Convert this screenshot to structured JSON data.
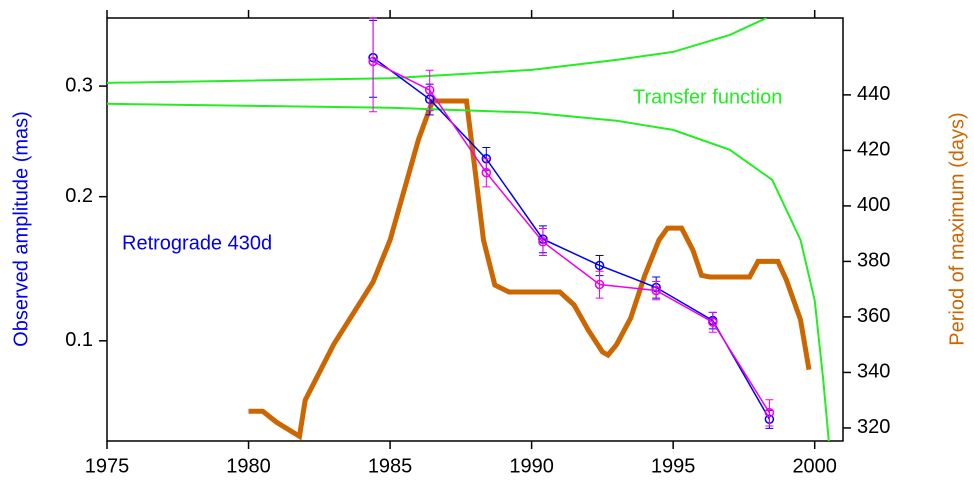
{
  "chart_data": {
    "type": "line",
    "xlim": [
      1975,
      2001
    ],
    "xticks": [
      1975,
      1980,
      1985,
      1990,
      1995,
      2000
    ],
    "ylim": [
      0.0507,
      0.3716
    ],
    "yscale": "sqrt",
    "yticks": [
      0.1,
      0.2,
      0.3
    ],
    "y2lim": [
      315.3,
      467.7
    ],
    "y2ticks": [
      320,
      340,
      360,
      380,
      400,
      420,
      440
    ],
    "ylabel": "Observed amplitude (mas)",
    "y2label": "Period of maximum (days)",
    "series": [
      {
        "name": "Retrograde 430d",
        "color": "#0000ee",
        "marker": "circle",
        "x": [
          1984.4,
          1986.4,
          1988.4,
          1990.4,
          1992.4,
          1994.4,
          1996.4,
          1998.4
        ],
        "values": [
          0.329,
          0.287,
          0.232,
          0.167,
          0.148,
          0.133,
          0.112,
          0.06
        ],
        "errors": [
          0.04,
          0.015,
          0.01,
          0.01,
          0.007,
          0.007,
          0.005,
          0.004
        ]
      },
      {
        "color": "#ee00ee",
        "marker": "circle",
        "x": [
          1984.4,
          1986.4,
          1988.4,
          1990.4,
          1992.4,
          1994.4,
          1996.4,
          1998.4
        ],
        "values": [
          0.325,
          0.296,
          0.22,
          0.165,
          0.135,
          0.131,
          0.111,
          0.063
        ],
        "errors": [
          0.05,
          0.02,
          0.012,
          0.01,
          0.009,
          0.006,
          0.006,
          0.006
        ]
      },
      {
        "name": "Transfer function",
        "color": "#22ee22",
        "axis": "y2",
        "x": [
          1975,
          1985,
          1990,
          1993,
          1995,
          1997,
          1998.3,
          1998.3,
          1975,
          1985,
          1990,
          1993,
          1995,
          1997,
          1998.5,
          1999.5,
          2000,
          2000.3,
          2000.5
        ],
        "values": [
          444.3,
          446,
          449,
          452.6,
          455.5,
          461.6,
          467.7,
          null,
          436.8,
          435.4,
          433.6,
          430.7,
          427.4,
          420.2,
          409.4,
          387.8,
          366,
          337.5,
          315.3
        ]
      },
      {
        "color": "#cc6600",
        "axis": "y2",
        "x": [
          1980,
          1980.5,
          1981,
          1981.8,
          1982,
          1983,
          1984.4,
          1985,
          1986,
          1986.5,
          1987.7,
          1988,
          1988.3,
          1988.7,
          1989.2,
          1991,
          1991.5,
          1992,
          1992.5,
          1992.7,
          1993,
          1993.5,
          1994,
          1994.5,
          1994.8,
          1995.3,
          1995.7,
          1996,
          1996.3,
          1997.7,
          1998,
          1998.7,
          1999,
          1999.5,
          1999.8
        ],
        "values": [
          326,
          326,
          322,
          317,
          330,
          350,
          372.6,
          387.7,
          423.8,
          437.8,
          437.8,
          413,
          387.7,
          371.5,
          369,
          369,
          364.3,
          355.3,
          347.4,
          346.3,
          350,
          359.6,
          375,
          387.7,
          392,
          392,
          384,
          375,
          374.4,
          374.4,
          380,
          380,
          373.3,
          359,
          341
        ]
      }
    ]
  }
}
